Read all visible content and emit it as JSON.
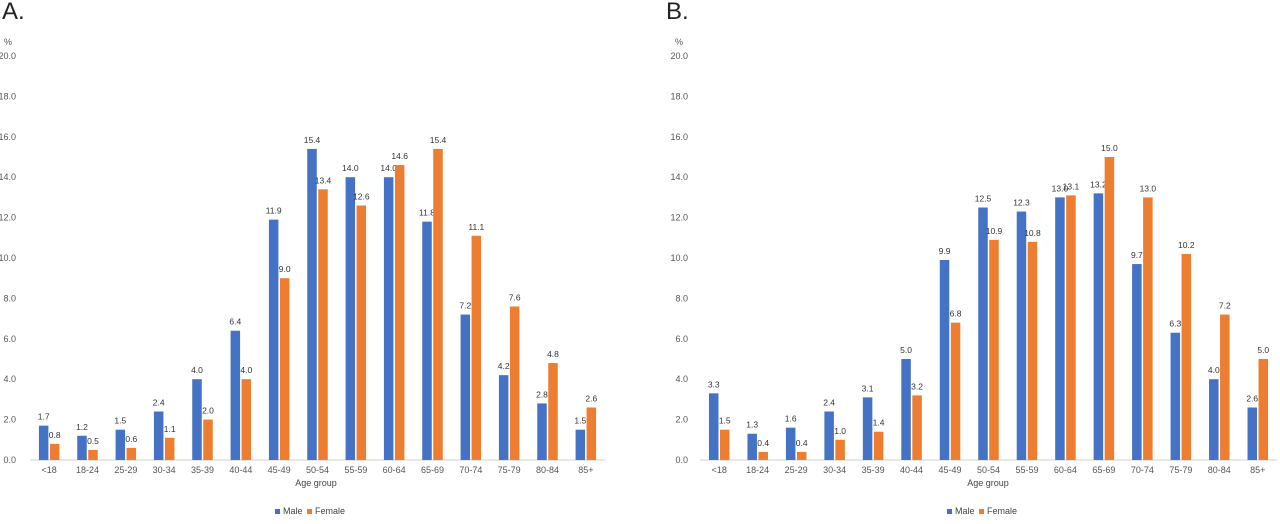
{
  "colors": {
    "male": "#4472C4",
    "female": "#ED7D31"
  },
  "chart_data": [
    {
      "type": "bar",
      "panel_label": "A.",
      "unit_label": "%",
      "xlabel": "Age group",
      "ylim": [
        0,
        20
      ],
      "y_ticks": [
        "0.0",
        "2.0",
        "4.0",
        "6.0",
        "8.0",
        "10.0",
        "12.0",
        "14.0",
        "16.0",
        "18.0",
        "20.0"
      ],
      "grid": false,
      "legend_position": "bottom",
      "categories": [
        "<18",
        "18-24",
        "25-29",
        "30-34",
        "35-39",
        "40-44",
        "45-49",
        "50-54",
        "55-59",
        "60-64",
        "65-69",
        "70-74",
        "75-79",
        "80-84",
        "85+"
      ],
      "series": [
        {
          "name": "Male",
          "values": [
            1.7,
            1.2,
            1.5,
            2.4,
            4.0,
            6.4,
            11.9,
            15.4,
            14.0,
            14.0,
            11.8,
            7.2,
            4.2,
            2.8,
            1.5
          ]
        },
        {
          "name": "Female",
          "values": [
            0.8,
            0.5,
            0.6,
            1.1,
            2.0,
            4.0,
            9.0,
            13.4,
            12.6,
            14.6,
            15.4,
            11.1,
            7.6,
            4.8,
            2.6
          ]
        }
      ]
    },
    {
      "type": "bar",
      "panel_label": "B.",
      "unit_label": "%",
      "xlabel": "Age group",
      "ylim": [
        0,
        20
      ],
      "y_ticks": [
        "0.0",
        "2.0",
        "4.0",
        "6.0",
        "8.0",
        "10.0",
        "12.0",
        "14.0",
        "16.0",
        "18.0",
        "20.0"
      ],
      "grid": false,
      "legend_position": "bottom",
      "categories": [
        "<18",
        "18-24",
        "25-29",
        "30-34",
        "35-39",
        "40-44",
        "45-49",
        "50-54",
        "55-59",
        "60-64",
        "65-69",
        "70-74",
        "75-79",
        "80-84",
        "85+"
      ],
      "series": [
        {
          "name": "Male",
          "values": [
            3.3,
            1.3,
            1.6,
            2.4,
            3.1,
            5.0,
            9.9,
            12.5,
            12.3,
            13.0,
            13.2,
            9.7,
            6.3,
            4.0,
            2.6
          ]
        },
        {
          "name": "Female",
          "values": [
            1.5,
            0.4,
            0.4,
            1.0,
            1.4,
            3.2,
            6.8,
            10.9,
            10.8,
            13.1,
            15.0,
            13.0,
            10.2,
            7.2,
            5.0
          ]
        }
      ]
    }
  ]
}
